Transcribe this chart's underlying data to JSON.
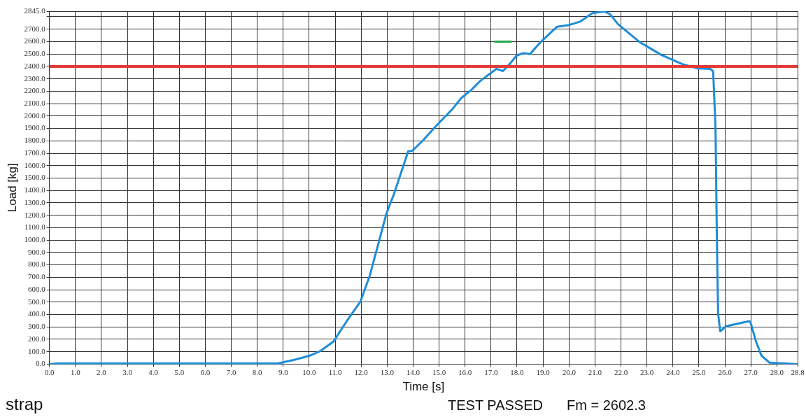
{
  "chart_data": {
    "type": "line",
    "xlabel": "Time [s]",
    "ylabel": "Load [kg]",
    "xlim": [
      0,
      28.8
    ],
    "ylim": [
      0,
      2845
    ],
    "xticks": [
      {
        "value": 0,
        "label": "0.0"
      },
      {
        "value": 1,
        "label": "1.0"
      },
      {
        "value": 2,
        "label": "2.0"
      },
      {
        "value": 3,
        "label": "3.0"
      },
      {
        "value": 4,
        "label": "4.0"
      },
      {
        "value": 5,
        "label": "5.0"
      },
      {
        "value": 6,
        "label": "6.0"
      },
      {
        "value": 7,
        "label": "7.0"
      },
      {
        "value": 8,
        "label": "8.0"
      },
      {
        "value": 9,
        "label": "9.0"
      },
      {
        "value": 10,
        "label": "10.0"
      },
      {
        "value": 11,
        "label": "11.0"
      },
      {
        "value": 12,
        "label": "12.0"
      },
      {
        "value": 13,
        "label": "13.0"
      },
      {
        "value": 14,
        "label": "14.0"
      },
      {
        "value": 15,
        "label": "15.0"
      },
      {
        "value": 16,
        "label": "16.0"
      },
      {
        "value": 17,
        "label": "17.0"
      },
      {
        "value": 18,
        "label": "18.0"
      },
      {
        "value": 19,
        "label": "19.0"
      },
      {
        "value": 20,
        "label": "20.0"
      },
      {
        "value": 21,
        "label": "21.0"
      },
      {
        "value": 22,
        "label": "22.0"
      },
      {
        "value": 23,
        "label": "23.0"
      },
      {
        "value": 24,
        "label": "24.0"
      },
      {
        "value": 25,
        "label": "25.0"
      },
      {
        "value": 26,
        "label": "26.0"
      },
      {
        "value": 27,
        "label": "27.0"
      },
      {
        "value": 28,
        "label": "28.0"
      },
      {
        "value": 28.8,
        "label": "28.8"
      }
    ],
    "yticks": [
      {
        "value": 0,
        "label": "0.0"
      },
      {
        "value": 100,
        "label": "100.0"
      },
      {
        "value": 200,
        "label": "200.0"
      },
      {
        "value": 300,
        "label": "300.0"
      },
      {
        "value": 400,
        "label": "400.0"
      },
      {
        "value": 500,
        "label": "500.0"
      },
      {
        "value": 600,
        "label": "600.0"
      },
      {
        "value": 700,
        "label": "700.0"
      },
      {
        "value": 800,
        "label": "800.0"
      },
      {
        "value": 900,
        "label": "900.0"
      },
      {
        "value": 1000,
        "label": "1000.0"
      },
      {
        "value": 1100,
        "label": "1100.0"
      },
      {
        "value": 1200,
        "label": "1200.0"
      },
      {
        "value": 1300,
        "label": "1300.0"
      },
      {
        "value": 1400,
        "label": "1400.0"
      },
      {
        "value": 1500,
        "label": "1500.0"
      },
      {
        "value": 1600,
        "label": "1600.0"
      },
      {
        "value": 1700,
        "label": "1700.0"
      },
      {
        "value": 1800,
        "label": "1800.0"
      },
      {
        "value": 1900,
        "label": "1900.0"
      },
      {
        "value": 2000,
        "label": "2000.0"
      },
      {
        "value": 2100,
        "label": "2100.0"
      },
      {
        "value": 2200,
        "label": "2200.0"
      },
      {
        "value": 2300,
        "label": "2300.0"
      },
      {
        "value": 2400,
        "label": "2400.0"
      },
      {
        "value": 2500,
        "label": "2500.0"
      },
      {
        "value": 2600,
        "label": "2600.0"
      },
      {
        "value": 2700,
        "label": "2700.0"
      },
      {
        "value": 2800,
        "label": null
      },
      {
        "value": 2845,
        "label": "2845.0"
      }
    ],
    "grid": true,
    "legend": false,
    "marker": "none",
    "line_style": "solid",
    "series": [
      {
        "color": "#1f8dd6",
        "x": [
          0,
          0.3,
          8.8,
          9.0,
          9.43,
          10.0,
          10.42,
          10.93,
          11.45,
          11.97,
          12.33,
          12.97,
          13.26,
          13.81,
          13.97,
          14.39,
          14.91,
          15.53,
          15.84,
          16.26,
          16.57,
          17.2,
          17.46,
          17.72,
          17.98,
          18.24,
          18.5,
          18.86,
          19.54,
          20.01,
          20.43,
          20.9,
          21.36,
          21.57,
          21.89,
          22.72,
          23.55,
          24.39,
          24.96,
          25.45,
          25.55,
          25.64,
          25.69,
          25.74,
          25.82,
          26.05,
          26.94,
          26.99,
          27.2,
          27.41,
          27.72,
          28.76
        ],
        "values": [
          0,
          5,
          5,
          15,
          35,
          67,
          104,
          181,
          348,
          504,
          712,
          1212,
          1370,
          1716,
          1720,
          1806,
          1926,
          2060,
          2142,
          2214,
          2280,
          2380,
          2363,
          2420,
          2487,
          2507,
          2499,
          2586,
          2720,
          2734,
          2761,
          2829,
          2843,
          2823,
          2740,
          2596,
          2493,
          2416,
          2384,
          2379,
          2359,
          1905,
          1047,
          408,
          264,
          305,
          346,
          336,
          181,
          68,
          12,
          0
        ]
      },
      {
        "color": "#22a84a",
        "x": [
          17.15,
          17.77
        ],
        "values": [
          2600,
          2600
        ]
      }
    ],
    "ref_lines": [
      {
        "axis": "y",
        "value": 2400,
        "color": "#e53935"
      }
    ],
    "annotations": [
      "strap",
      "TEST PASSED",
      "Fm = 2602.3"
    ]
  }
}
